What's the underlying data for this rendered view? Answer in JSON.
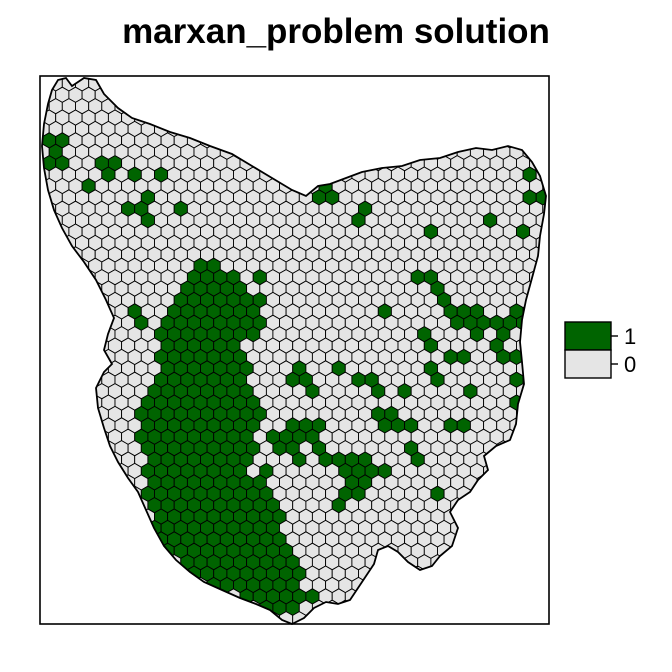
{
  "title": "marxan_problem solution",
  "map": {
    "fill_selected": "#006400",
    "fill_unselected": "#e5e5e5",
    "stroke": "#000000",
    "background": "#ffffff"
  },
  "legend": [
    {
      "label": "1",
      "color": "#006400"
    },
    {
      "label": "0",
      "color": "#e5e5e5"
    }
  ]
}
